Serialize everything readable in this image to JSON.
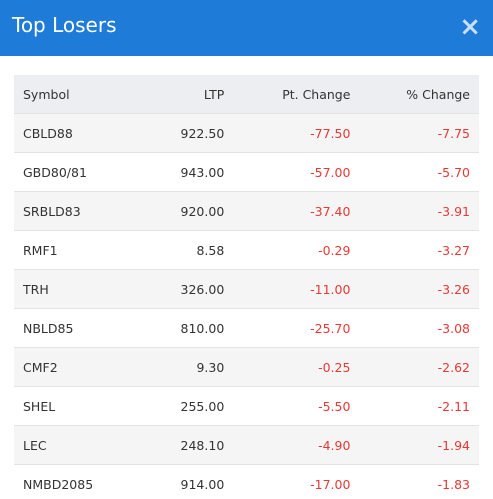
{
  "header": {
    "title": "Top Losers",
    "close": "×"
  },
  "table": {
    "columns": [
      "Symbol",
      "LTP",
      "Pt. Change",
      "% Change"
    ],
    "rows": [
      [
        "CBLD88",
        "922.50",
        "-77.50",
        "-7.75"
      ],
      [
        "GBD80/81",
        "943.00",
        "-57.00",
        "-5.70"
      ],
      [
        "SRBLD83",
        "920.00",
        "-37.40",
        "-3.91"
      ],
      [
        "RMF1",
        "8.58",
        "-0.29",
        "-3.27"
      ],
      [
        "TRH",
        "326.00",
        "-11.00",
        "-3.26"
      ],
      [
        "NBLD85",
        "810.00",
        "-25.70",
        "-3.08"
      ],
      [
        "CMF2",
        "9.30",
        "-0.25",
        "-2.62"
      ],
      [
        "SHEL",
        "255.00",
        "-5.50",
        "-2.11"
      ],
      [
        "LEC",
        "248.10",
        "-4.90",
        "-1.94"
      ],
      [
        "NMBD2085",
        "914.00",
        "-17.00",
        "-1.83"
      ]
    ]
  }
}
